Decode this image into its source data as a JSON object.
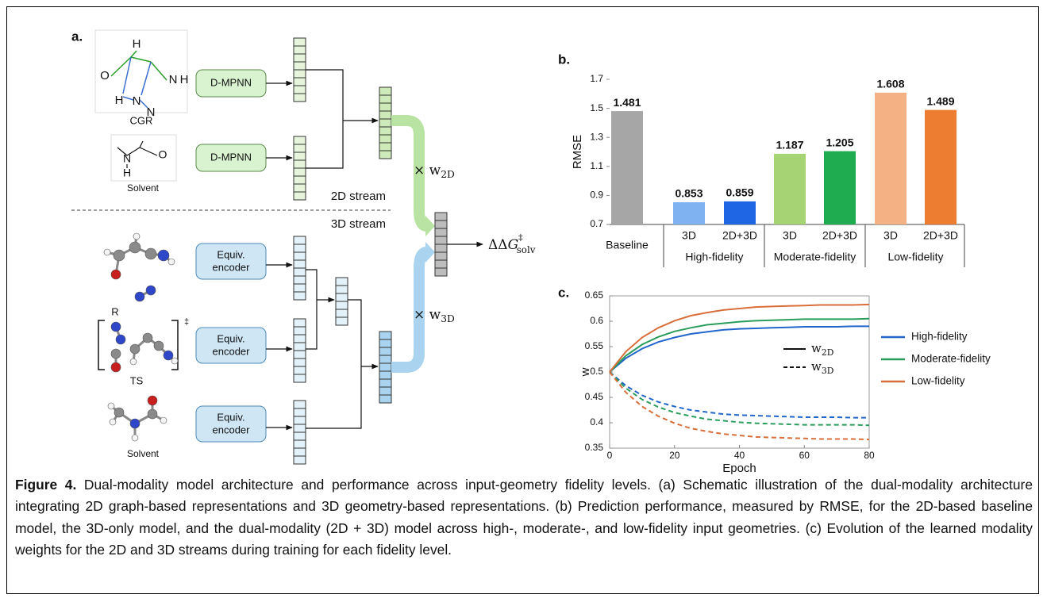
{
  "diagram": {
    "panel_label": "a.",
    "cgr": {
      "caption": "CGR",
      "atoms": [
        "O",
        "H",
        "N",
        "H",
        "H",
        "N",
        "N"
      ]
    },
    "solvent_2d": {
      "caption": "Solvent",
      "atoms": [
        "N",
        "H",
        "O"
      ]
    },
    "encoders_2d": [
      "D-MPNN",
      "D-MPNN"
    ],
    "stream_2d": "2D stream",
    "stream_3d": "3D stream",
    "geometry_3d": [
      {
        "caption": "R"
      },
      {
        "caption": "TS",
        "mark": "‡"
      },
      {
        "caption": "Solvent"
      }
    ],
    "encoders_3d": [
      [
        "Equiv.",
        "encoder"
      ],
      [
        "Equiv.",
        "encoder"
      ],
      [
        "Equiv.",
        "encoder"
      ]
    ],
    "weight_2d": {
      "text": "× w",
      "subscript": "2D"
    },
    "weight_3d": {
      "text": "× w",
      "subscript": "3D"
    },
    "output": {
      "text": "ΔΔ",
      "symbol": "G",
      "superscript": "‡",
      "subscript": "solv"
    }
  },
  "chart_data": [
    {
      "type": "bar",
      "panel_label": "b.",
      "y_label": "RMSE",
      "categories": [
        "Baseline",
        "3D",
        "2D+3D",
        "3D",
        "2D+3D",
        "3D",
        "2D+3D"
      ],
      "groups": [
        "High-fidelity",
        "Moderate-fidelity",
        "Low-fidelity"
      ],
      "values": [
        1.481,
        0.853,
        0.859,
        1.187,
        1.205,
        1.608,
        1.489
      ],
      "colors": [
        "#a6a6a6",
        "#7fb2f0",
        "#1f66e5",
        "#a6d475",
        "#1fab4f",
        "#f4b183",
        "#ed7d31"
      ],
      "ylim": [
        0.7,
        1.7
      ],
      "yticks": [
        0.7,
        0.9,
        1.1,
        1.3,
        1.5,
        1.7
      ]
    },
    {
      "type": "line",
      "panel_label": "c.",
      "x_label": "Epoch",
      "y_label": "w",
      "x": [
        0,
        5,
        10,
        15,
        20,
        25,
        30,
        35,
        40,
        45,
        50,
        55,
        60,
        65,
        70,
        75,
        80
      ],
      "series": [
        {
          "name": "High-fidelity",
          "color": "#2266cc",
          "values_2d": [
            0.5,
            0.527,
            0.546,
            0.559,
            0.568,
            0.575,
            0.579,
            0.583,
            0.585,
            0.586,
            0.587,
            0.588,
            0.589,
            0.589,
            0.589,
            0.59,
            0.59
          ],
          "values_3d": [
            0.5,
            0.473,
            0.454,
            0.441,
            0.432,
            0.425,
            0.421,
            0.417,
            0.415,
            0.414,
            0.413,
            0.412,
            0.411,
            0.411,
            0.411,
            0.41,
            0.41
          ]
        },
        {
          "name": "Moderate-fidelity",
          "color": "#2a9d5c",
          "values_2d": [
            0.5,
            0.532,
            0.554,
            0.569,
            0.58,
            0.587,
            0.593,
            0.596,
            0.599,
            0.601,
            0.602,
            0.603,
            0.604,
            0.604,
            0.604,
            0.604,
            0.605
          ],
          "values_3d": [
            0.5,
            0.468,
            0.446,
            0.431,
            0.42,
            0.413,
            0.407,
            0.404,
            0.401,
            0.399,
            0.398,
            0.397,
            0.396,
            0.396,
            0.396,
            0.396,
            0.395
          ]
        },
        {
          "name": "Low-fidelity",
          "color": "#d96e3a",
          "values_2d": [
            0.5,
            0.54,
            0.568,
            0.587,
            0.601,
            0.611,
            0.617,
            0.622,
            0.625,
            0.628,
            0.629,
            0.63,
            0.631,
            0.632,
            0.632,
            0.632,
            0.633
          ],
          "values_3d": [
            0.5,
            0.46,
            0.432,
            0.413,
            0.399,
            0.389,
            0.383,
            0.378,
            0.375,
            0.372,
            0.371,
            0.37,
            0.369,
            0.368,
            0.368,
            0.368,
            0.367
          ]
        }
      ],
      "line_styles": [
        {
          "text": "w",
          "subscript": "2D",
          "dashed": false
        },
        {
          "text": "w",
          "subscript": "3D",
          "dashed": true
        }
      ],
      "xlim": [
        0,
        80
      ],
      "xticks": [
        0,
        20,
        40,
        60,
        80
      ],
      "ylim": [
        0.35,
        0.65
      ],
      "yticks": [
        0.35,
        0.4,
        0.45,
        0.5,
        0.55,
        0.6,
        0.65
      ]
    }
  ],
  "caption": {
    "label": "Figure 4.",
    "text": "Dual-modality model architecture and performance across input-geometry fidelity levels. (a) Schematic illustration of the dual-modality architecture integrating 2D graph-based representations and 3D geometry-based representations. (b) Prediction performance, measured by RMSE, for the 2D-based baseline model, the 3D-only model, and the dual-modality (2D + 3D) model across high-, moderate-, and low-fidelity input geometries. (c) Evolution of the learned modality weights for the 2D and 3D streams during training for each fidelity level."
  }
}
